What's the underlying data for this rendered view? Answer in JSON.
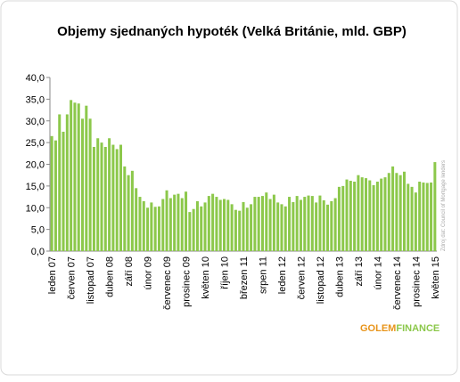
{
  "chart_data": {
    "type": "bar",
    "title": "Objemy sjednaných hypoték (Velká Británie, mld. GBP)",
    "source": "Zdroj dat: Council of Mortgage lenders",
    "logo": {
      "part1": "GOLEM",
      "part2": "FINANCE"
    },
    "color": "#8cc84b",
    "categories": [
      "leden 07",
      null,
      null,
      null,
      null,
      "červen 07",
      null,
      null,
      null,
      null,
      "listopad 07",
      null,
      null,
      null,
      null,
      "duben 08",
      null,
      null,
      null,
      null,
      "září 08",
      null,
      null,
      null,
      null,
      "únor 09",
      null,
      null,
      null,
      null,
      "červenec 09",
      null,
      null,
      null,
      null,
      "prosinec 09",
      null,
      null,
      null,
      null,
      "květen 10",
      null,
      null,
      null,
      null,
      "říjen 10",
      null,
      null,
      null,
      null,
      "březen 11",
      null,
      null,
      null,
      null,
      "srpen 11",
      null,
      null,
      null,
      null,
      "leden 12",
      null,
      null,
      null,
      null,
      "červen 12",
      null,
      null,
      null,
      null,
      "listopad 12",
      null,
      null,
      null,
      null,
      "duben 13",
      null,
      null,
      null,
      null,
      "září 13",
      null,
      null,
      null,
      null,
      "únor 14",
      null,
      null,
      null,
      null,
      "červenec 14",
      null,
      null,
      null,
      null,
      "prosinec 14",
      null,
      null,
      null,
      null,
      "květen 15"
    ],
    "values": [
      26.5,
      25.5,
      31.5,
      27.5,
      31.5,
      34.8,
      34.2,
      34,
      30.5,
      33.5,
      30.5,
      24,
      26,
      25,
      24,
      26,
      24.5,
      23.5,
      24.5,
      19.5,
      17.5,
      18.5,
      14.5,
      12.5,
      11.5,
      10,
      11.2,
      10.2,
      10.3,
      12,
      14,
      12.2,
      13,
      13.2,
      12.2,
      13.7,
      9,
      9.7,
      11.5,
      10.3,
      11.2,
      12.7,
      13.2,
      12.5,
      11.8,
      12,
      11.8,
      10.8,
      9.5,
      9.3,
      11.3,
      10,
      10.8,
      12.5,
      12.5,
      12.7,
      13.5,
      12,
      13,
      11.2,
      10.8,
      10.3,
      12.5,
      11.3,
      12.7,
      11.8,
      12.5,
      12.8,
      12.7,
      11.2,
      12.8,
      11.7,
      10.7,
      11.5,
      12.2,
      14.8,
      15,
      16.5,
      16.2,
      16,
      17.5,
      17,
      16.8,
      16.3,
      15.2,
      16,
      16.7,
      17,
      18,
      19.5,
      18,
      17.5,
      18.3,
      15.5,
      14.8,
      13.5,
      16,
      15.8,
      15.7,
      15.8,
      20.5
    ],
    "ylim": [
      0,
      40
    ],
    "yticks": [
      {
        "value": 0,
        "label": "0,0"
      },
      {
        "value": 5,
        "label": "5,0"
      },
      {
        "value": 10,
        "label": "10,0"
      },
      {
        "value": 15,
        "label": "15,0"
      },
      {
        "value": 20,
        "label": "20,0"
      },
      {
        "value": 25,
        "label": "25,0"
      },
      {
        "value": 30,
        "label": "30,0"
      },
      {
        "value": 35,
        "label": "35,0"
      },
      {
        "value": 40,
        "label": "40,0"
      }
    ],
    "grid": false
  }
}
